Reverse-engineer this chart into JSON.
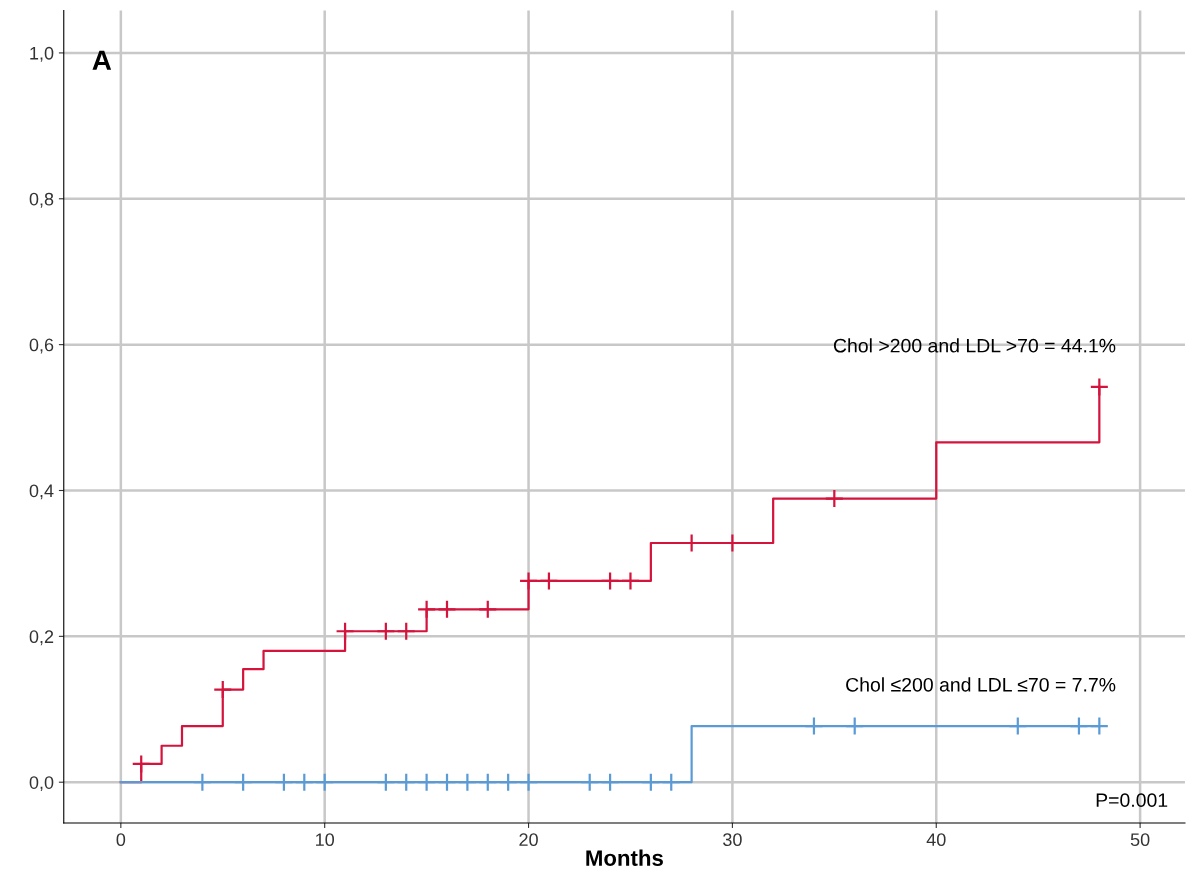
{
  "chart_data": {
    "type": "step",
    "xlabel": "Months",
    "annotations": [
      "A",
      "P=0.001"
    ],
    "xlim": [
      -2.8,
      52.2
    ],
    "ylim": [
      -0.056,
      1.058
    ],
    "xticks": [
      0,
      10,
      20,
      30,
      40,
      50
    ],
    "yticks": [
      {
        "value": 0,
        "label": "0,0"
      },
      {
        "value": 0.2,
        "label": "0,2"
      },
      {
        "value": 0.4,
        "label": "0,4"
      },
      {
        "value": 0.6,
        "label": "0,6"
      },
      {
        "value": 0.8,
        "label": "0,8"
      },
      {
        "value": 1.0,
        "label": "1,0"
      }
    ],
    "grid": true,
    "series": [
      {
        "name": "Chol >200 and LDL >70 = 44.1%",
        "color": "#d4143c",
        "x": [
          0,
          1,
          2,
          3,
          5,
          6,
          7,
          11,
          15,
          20,
          26,
          32,
          40,
          48
        ],
        "values": [
          0,
          0.025,
          0.05,
          0.077,
          0.127,
          0.155,
          0.18,
          0.207,
          0.237,
          0.276,
          0.328,
          0.389,
          0.466,
          0.542
        ]
      },
      {
        "name": "Chol ≤200 and LDL ≤70 = 7.7%",
        "color": "#5b9bd5",
        "x": [
          0,
          28,
          48
        ],
        "values": [
          0,
          0.077,
          0.077
        ]
      },
      {
        "type": "scatter",
        "marker": "cross",
        "color": "#d4143c",
        "x": [
          1,
          5,
          11,
          13,
          14,
          15,
          16,
          18,
          20,
          21,
          24,
          25,
          28,
          30,
          35,
          48
        ],
        "values": [
          0.025,
          0.127,
          0.207,
          0.207,
          0.207,
          0.237,
          0.237,
          0.237,
          0.276,
          0.276,
          0.276,
          0.276,
          0.328,
          0.328,
          0.389,
          0.542
        ]
      },
      {
        "type": "scatter",
        "marker": "cross",
        "color": "#5b9bd5",
        "x": [
          4,
          6,
          8,
          9,
          10,
          13,
          14,
          15,
          16,
          17,
          18,
          19,
          20,
          23,
          24,
          26,
          27,
          34,
          36,
          44,
          47,
          48
        ],
        "values": [
          0,
          0,
          0,
          0,
          0,
          0,
          0,
          0,
          0,
          0,
          0,
          0,
          0,
          0,
          0,
          0,
          0,
          0.077,
          0.077,
          0.077,
          0.077,
          0.077
        ]
      }
    ]
  }
}
